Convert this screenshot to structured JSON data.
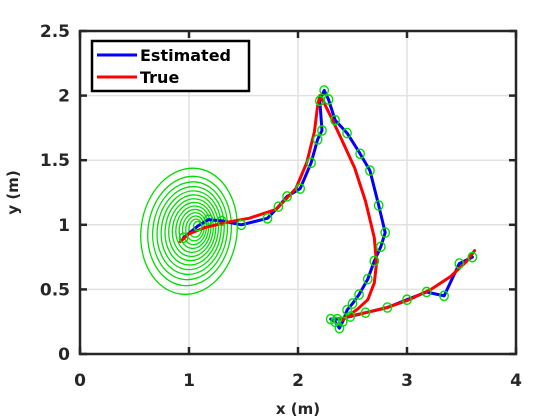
{
  "chart_data": {
    "type": "line",
    "title": "",
    "xlabel": "x (m)",
    "ylabel": "y (m)",
    "xlim": [
      0,
      4
    ],
    "ylim": [
      0,
      2.5
    ],
    "xticks": [
      "0",
      "1",
      "2",
      "3",
      "4"
    ],
    "yticks": [
      "0",
      "0.5",
      "1",
      "1.5",
      "2",
      "2.5"
    ],
    "grid": true,
    "legend": {
      "placement": "top-left",
      "entries": [
        {
          "name": "Estimated",
          "color": "#0000ff"
        },
        {
          "name": "True",
          "color": "#ff0000"
        }
      ]
    },
    "series": [
      {
        "name": "Estimated",
        "color": "#0000ff",
        "x": [
          0.95,
          1.08,
          1.18,
          1.3,
          1.48,
          1.72,
          1.82,
          1.9,
          2.02,
          2.12,
          2.18,
          2.22,
          2.2,
          2.24,
          2.28,
          2.34,
          2.45,
          2.57,
          2.66,
          2.74,
          2.8,
          2.76,
          2.7,
          2.64,
          2.56,
          2.5,
          2.45,
          2.41,
          2.38,
          2.34,
          2.3,
          2.36,
          2.48,
          2.62,
          2.82,
          3.0,
          3.18,
          3.34,
          3.48,
          3.6
        ],
        "y": [
          0.9,
          0.99,
          1.04,
          1.03,
          1.0,
          1.05,
          1.14,
          1.22,
          1.28,
          1.48,
          1.66,
          1.73,
          1.96,
          2.04,
          1.97,
          1.81,
          1.71,
          1.55,
          1.42,
          1.15,
          0.94,
          0.83,
          0.72,
          0.58,
          0.46,
          0.39,
          0.34,
          0.25,
          0.2,
          0.25,
          0.27,
          0.27,
          0.29,
          0.32,
          0.36,
          0.42,
          0.48,
          0.45,
          0.7,
          0.75
        ],
        "marker": "#00e000"
      },
      {
        "name": "True",
        "color": "#ff0000",
        "x": [
          0.92,
          1.0,
          1.15,
          1.35,
          1.55,
          1.8,
          1.98,
          2.08,
          2.15,
          2.18,
          2.2,
          2.23,
          2.3,
          2.4,
          2.52,
          2.62,
          2.7,
          2.72,
          2.7,
          2.64,
          2.55,
          2.47,
          2.42,
          2.4,
          2.41,
          2.46,
          2.62,
          2.82,
          3.02,
          3.22,
          3.4,
          3.55,
          3.62
        ],
        "y": [
          0.87,
          0.93,
          0.98,
          1.02,
          1.05,
          1.12,
          1.28,
          1.48,
          1.72,
          1.92,
          2.0,
          1.96,
          1.84,
          1.66,
          1.44,
          1.18,
          0.9,
          0.7,
          0.55,
          0.42,
          0.35,
          0.3,
          0.27,
          0.26,
          0.27,
          0.29,
          0.32,
          0.36,
          0.42,
          0.5,
          0.6,
          0.72,
          0.8
        ]
      }
    ],
    "covariance_ellipses": {
      "color": "#00dd00",
      "center": [
        1.0,
        0.95
      ],
      "outer_radius": [
        0.44,
        0.49
      ],
      "inner_radius": [
        0.06,
        0.07
      ],
      "count": 13
    }
  }
}
